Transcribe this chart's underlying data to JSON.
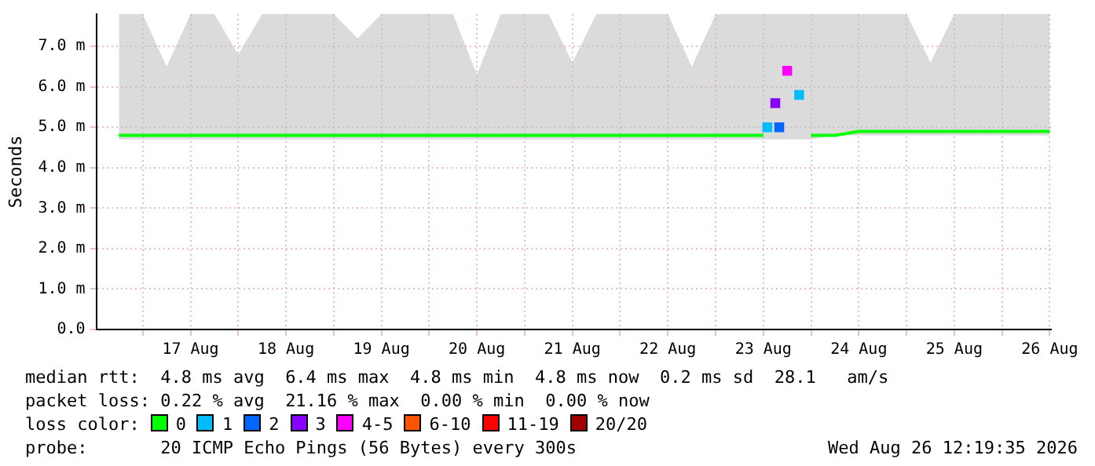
{
  "chart_data": {
    "type": "line",
    "ylabel": "Seconds",
    "xlim": [
      "2026-08-16T12:19",
      "2026-08-26T12:19"
    ],
    "xticks": [
      {
        "value": "2026-08-17T00:00",
        "label": null
      },
      {
        "value": "2026-08-17T12:00",
        "label": "17 Aug"
      },
      {
        "value": "2026-08-18T00:00",
        "label": null
      },
      {
        "value": "2026-08-18T12:00",
        "label": "18 Aug"
      },
      {
        "value": "2026-08-19T00:00",
        "label": null
      },
      {
        "value": "2026-08-19T12:00",
        "label": "19 Aug"
      },
      {
        "value": "2026-08-20T00:00",
        "label": null
      },
      {
        "value": "2026-08-20T12:00",
        "label": "20 Aug"
      },
      {
        "value": "2026-08-21T00:00",
        "label": null
      },
      {
        "value": "2026-08-21T12:00",
        "label": "21 Aug"
      },
      {
        "value": "2026-08-22T00:00",
        "label": null
      },
      {
        "value": "2026-08-22T12:00",
        "label": "22 Aug"
      },
      {
        "value": "2026-08-23T00:00",
        "label": null
      },
      {
        "value": "2026-08-23T12:00",
        "label": "23 Aug"
      },
      {
        "value": "2026-08-24T00:00",
        "label": null
      },
      {
        "value": "2026-08-24T12:00",
        "label": "24 Aug"
      },
      {
        "value": "2026-08-25T00:00",
        "label": null
      },
      {
        "value": "2026-08-25T12:00",
        "label": "25 Aug"
      },
      {
        "value": "2026-08-26T00:00",
        "label": null
      },
      {
        "value": "2026-08-26T12:00",
        "label": "26 Aug"
      }
    ],
    "ylim": [
      0,
      7.8
    ],
    "yticks": [
      {
        "value": 0,
        "label": "0.0"
      },
      {
        "value": 1,
        "label": "1.0 m"
      },
      {
        "value": 2,
        "label": "2.0 m"
      },
      {
        "value": 3,
        "label": "3.0 m"
      },
      {
        "value": 4,
        "label": "4.0 m"
      },
      {
        "value": 5,
        "label": "5.0 m"
      },
      {
        "value": 6,
        "label": "6.0 m"
      },
      {
        "value": 7,
        "label": "7.0 m"
      }
    ],
    "grid": true,
    "legend": "bottom",
    "legend_title": "loss color:",
    "series": [
      {
        "name": "0",
        "color": "#00ff00",
        "x": [
          "2026-08-16T18:00",
          "2026-08-17T00:00",
          "2026-08-17T06:00",
          "2026-08-17T12:00",
          "2026-08-17T18:00",
          "2026-08-18T00:00",
          "2026-08-18T06:00",
          "2026-08-18T12:00",
          "2026-08-18T18:00",
          "2026-08-19T00:00",
          "2026-08-19T06:00",
          "2026-08-19T12:00",
          "2026-08-19T18:00",
          "2026-08-20T00:00",
          "2026-08-20T06:00",
          "2026-08-20T12:00",
          "2026-08-20T18:00",
          "2026-08-21T00:00",
          "2026-08-21T06:00",
          "2026-08-21T12:00",
          "2026-08-21T18:00",
          "2026-08-22T00:00",
          "2026-08-22T06:00",
          "2026-08-22T12:00",
          "2026-08-22T18:00",
          "2026-08-23T00:00",
          "2026-08-23T06:00",
          "2026-08-23T12:00",
          "2026-08-23T18:00",
          "2026-08-24T00:00",
          "2026-08-24T06:00",
          "2026-08-24T12:00",
          "2026-08-24T18:00",
          "2026-08-25T00:00",
          "2026-08-25T06:00",
          "2026-08-25T12:00",
          "2026-08-25T18:00",
          "2026-08-26T00:00",
          "2026-08-26T06:00",
          "2026-08-26T12:00"
        ],
        "values": [
          4.8,
          4.8,
          4.8,
          4.8,
          4.8,
          4.8,
          4.8,
          4.8,
          4.8,
          4.8,
          4.8,
          4.8,
          4.8,
          4.8,
          4.8,
          4.8,
          4.8,
          4.8,
          4.8,
          4.8,
          4.8,
          4.8,
          4.8,
          4.8,
          4.8,
          4.8,
          4.8,
          4.8,
          null,
          4.8,
          4.8,
          4.9,
          4.9,
          4.9,
          4.9,
          4.9,
          4.9,
          4.9,
          4.9,
          4.9
        ],
        "lower": [
          4.7,
          4.7,
          4.7,
          4.7,
          4.7,
          4.7,
          4.7,
          4.7,
          4.7,
          4.7,
          4.7,
          4.7,
          4.7,
          4.7,
          4.7,
          4.7,
          4.7,
          4.7,
          4.7,
          4.7,
          4.7,
          4.7,
          4.7,
          4.7,
          4.7,
          4.7,
          4.7,
          4.7,
          4.7,
          4.7,
          4.8,
          4.8,
          4.8,
          4.8,
          4.8,
          4.8,
          4.8,
          4.8,
          4.8,
          4.8
        ],
        "upper": [
          7.8,
          7.8,
          6.5,
          7.8,
          7.8,
          6.8,
          7.8,
          7.8,
          7.8,
          7.8,
          7.2,
          7.8,
          7.8,
          7.8,
          7.8,
          6.3,
          7.8,
          7.8,
          7.8,
          6.6,
          7.8,
          7.8,
          7.8,
          7.8,
          6.5,
          7.8,
          7.8,
          7.8,
          7.8,
          7.8,
          7.8,
          7.8,
          7.8,
          7.8,
          6.6,
          7.8,
          7.8,
          7.8,
          7.8,
          7.8
        ]
      },
      {
        "name": "1",
        "type": "scatter",
        "marker": "square",
        "color": "#00bbff",
        "x": [
          "2026-08-23T13:00",
          "2026-08-23T21:00"
        ],
        "values": [
          5.0,
          5.8
        ]
      },
      {
        "name": "2",
        "type": "scatter",
        "marker": "square",
        "color": "#0066ff",
        "x": [
          "2026-08-23T16:00"
        ],
        "values": [
          5.0
        ]
      },
      {
        "name": "3",
        "type": "scatter",
        "marker": "square",
        "color": "#8800ff",
        "x": [
          "2026-08-23T15:00"
        ],
        "values": [
          5.6
        ]
      },
      {
        "name": "4-5",
        "type": "scatter",
        "marker": "square",
        "color": "#ff00ff",
        "x": [
          "2026-08-23T18:00"
        ],
        "values": [
          6.4
        ]
      },
      {
        "name": "6-10",
        "type": "scatter",
        "marker": "square",
        "color": "#ff5500"
      },
      {
        "name": "11-19",
        "type": "scatter",
        "marker": "square",
        "color": "#ff0000"
      },
      {
        "name": "20/20",
        "type": "scatter",
        "marker": "square",
        "color": "#a10000"
      }
    ],
    "annotations": [
      "median rtt:  4.8 ms avg  6.4 ms max  4.8 ms min  4.8 ms now  0.2 ms sd  28.1   am/s",
      "packet loss: 0.22 % avg  21.16 % max  0.00 % min  0.00 % now",
      "probe:       20 ICMP Echo Pings (56 Bytes) every 300s",
      "Wed Aug 26 12:19:35 2026"
    ]
  }
}
